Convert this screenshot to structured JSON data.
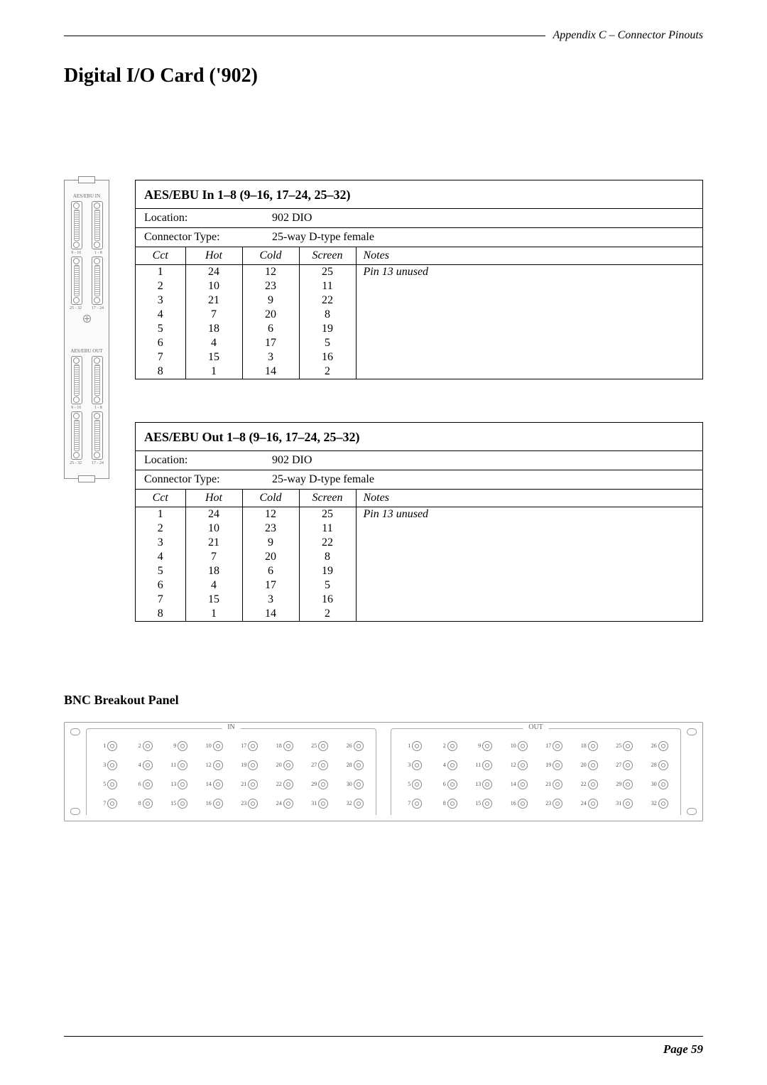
{
  "header": {
    "appendix": "Appendix C – Connector Pinouts"
  },
  "title": "Digital I/O Card ('902)",
  "card_labels": {
    "in": "AES/EBU IN",
    "out": "AES/EBU OUT",
    "r1l": "9 - 16",
    "r1r": "1 - 8",
    "r2l": "25 - 32",
    "r2r": "17 - 24"
  },
  "table_in": {
    "title": "AES/EBU In 1–8 (9–16, 17–24, 25–32)",
    "location_label": "Location:",
    "location_value": "902 DIO",
    "conntype_label": "Connector Type:",
    "conntype_value": "25-way D-type female",
    "headers": [
      "Cct",
      "Hot",
      "Cold",
      "Screen",
      "Notes"
    ],
    "note": "Pin 13 unused",
    "rows": [
      [
        "1",
        "24",
        "12",
        "25"
      ],
      [
        "2",
        "10",
        "23",
        "11"
      ],
      [
        "3",
        "21",
        "9",
        "22"
      ],
      [
        "4",
        "7",
        "20",
        "8"
      ],
      [
        "5",
        "18",
        "6",
        "19"
      ],
      [
        "6",
        "4",
        "17",
        "5"
      ],
      [
        "7",
        "15",
        "3",
        "16"
      ],
      [
        "8",
        "1",
        "14",
        "2"
      ]
    ]
  },
  "table_out": {
    "title": "AES/EBU Out 1–8 (9–16, 17–24, 25–32)",
    "location_label": "Location:",
    "location_value": "902 DIO",
    "conntype_label": "Connector Type:",
    "conntype_value": "25-way D-type female",
    "headers": [
      "Cct",
      "Hot",
      "Cold",
      "Screen",
      "Notes"
    ],
    "note": "Pin 13 unused",
    "rows": [
      [
        "1",
        "24",
        "12",
        "25"
      ],
      [
        "2",
        "10",
        "23",
        "11"
      ],
      [
        "3",
        "21",
        "9",
        "22"
      ],
      [
        "4",
        "7",
        "20",
        "8"
      ],
      [
        "5",
        "18",
        "6",
        "19"
      ],
      [
        "6",
        "4",
        "17",
        "5"
      ],
      [
        "7",
        "15",
        "3",
        "16"
      ],
      [
        "8",
        "1",
        "14",
        "2"
      ]
    ]
  },
  "bnc": {
    "subtitle": "BNC Breakout Panel",
    "section_in": "IN",
    "section_out": "OUT",
    "in_numbers": [
      "1",
      "2",
      "9",
      "10",
      "17",
      "18",
      "25",
      "26",
      "3",
      "4",
      "11",
      "12",
      "19",
      "20",
      "27",
      "28",
      "5",
      "6",
      "13",
      "14",
      "21",
      "22",
      "29",
      "30",
      "7",
      "8",
      "15",
      "16",
      "23",
      "24",
      "31",
      "32"
    ],
    "out_numbers": [
      "1",
      "2",
      "9",
      "10",
      "17",
      "18",
      "25",
      "26",
      "3",
      "4",
      "11",
      "12",
      "19",
      "20",
      "27",
      "28",
      "5",
      "6",
      "13",
      "14",
      "21",
      "22",
      "29",
      "30",
      "7",
      "8",
      "15",
      "16",
      "23",
      "24",
      "31",
      "32"
    ]
  },
  "page": "Page 59"
}
